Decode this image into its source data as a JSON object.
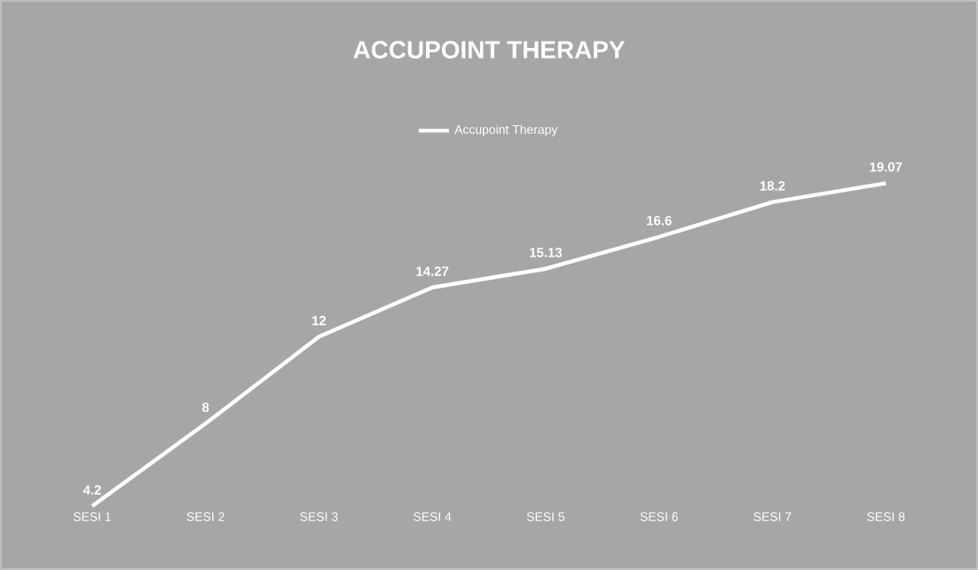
{
  "chart_data": {
    "type": "line",
    "title": "ACCUPOINT THERAPY",
    "categories": [
      "SESI 1",
      "SESI 2",
      "SESI 3",
      "SESI 4",
      "SESI 5",
      "SESI 6",
      "SESI 7",
      "SESI 8"
    ],
    "series": [
      {
        "name": "Accupoint Therapy",
        "color": "#ffffff",
        "values": [
          4.2,
          8,
          12,
          14.27,
          15.13,
          16.6,
          18.2,
          19.07
        ]
      }
    ],
    "tick_labels": "x",
    "data_labels": true,
    "legend": "top",
    "grid": false,
    "marker": "none",
    "line_style": "solid"
  }
}
